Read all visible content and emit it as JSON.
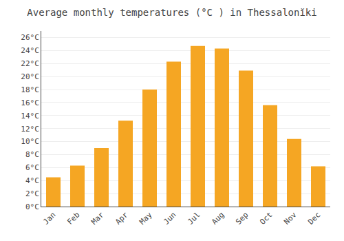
{
  "chart_data": {
    "type": "bar",
    "title": "Average monthly temperatures (°C ) in Thessalonĭki",
    "categories": [
      "Jan",
      "Feb",
      "Mar",
      "Apr",
      "May",
      "Jun",
      "Jul",
      "Aug",
      "Sep",
      "Oct",
      "Nov",
      "Dec"
    ],
    "values": [
      4.5,
      6.3,
      9.0,
      13.2,
      18.0,
      22.3,
      24.7,
      24.3,
      20.9,
      15.6,
      10.4,
      6.2
    ],
    "color": "#F5A623",
    "ylim": [
      0,
      27
    ],
    "yticks": [
      {
        "value": 0,
        "label": "0°C"
      },
      {
        "value": 2,
        "label": "2°C"
      },
      {
        "value": 4,
        "label": "4°C"
      },
      {
        "value": 6,
        "label": "6°C"
      },
      {
        "value": 8,
        "label": "8°C"
      },
      {
        "value": 10,
        "label": "10°C"
      },
      {
        "value": 12,
        "label": "12°C"
      },
      {
        "value": 14,
        "label": "14°C"
      },
      {
        "value": 16,
        "label": "16°C"
      },
      {
        "value": 18,
        "label": "18°C"
      },
      {
        "value": 20,
        "label": "20°C"
      },
      {
        "value": 22,
        "label": "22°C"
      },
      {
        "value": 24,
        "label": "24°C"
      },
      {
        "value": 26,
        "label": "26°C"
      }
    ],
    "grid": true
  }
}
